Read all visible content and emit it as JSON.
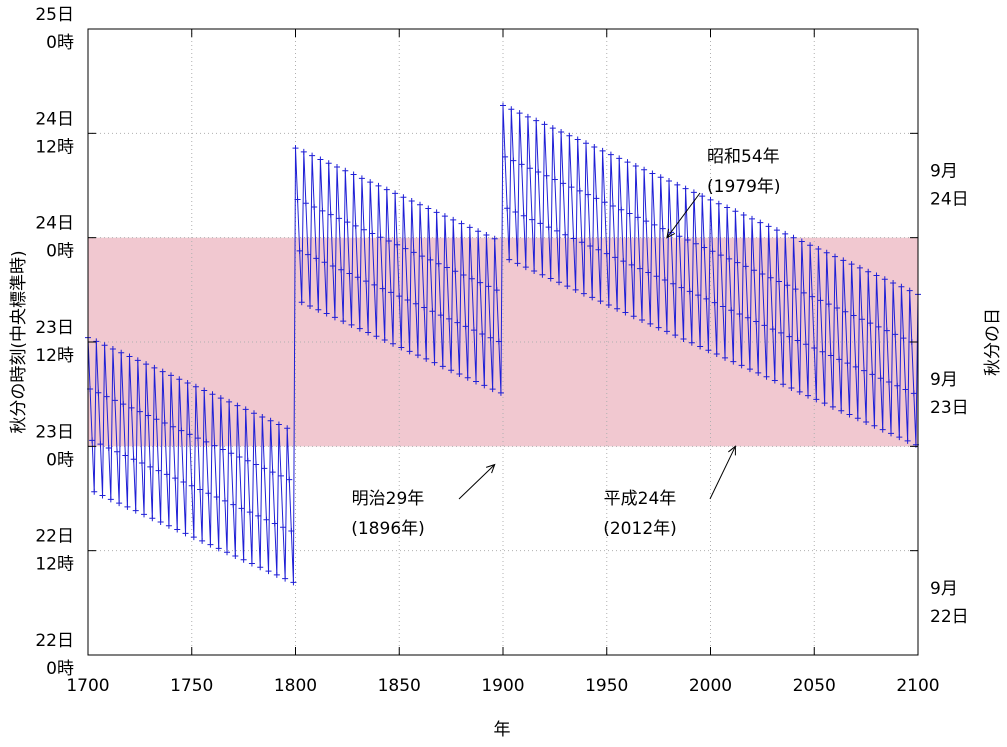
{
  "chart_data": {
    "type": "line",
    "title": "",
    "xlabel": "年",
    "ylabel_left": "秋分の時刻(中央標準時)",
    "ylabel_right": "秋分の日",
    "xlim": [
      1700,
      2100
    ],
    "ylim_hours": [
      0,
      72
    ],
    "x_ticks": [
      {
        "value": 1700,
        "label": "1700"
      },
      {
        "value": 1750,
        "label": "1750"
      },
      {
        "value": 1800,
        "label": "1800"
      },
      {
        "value": 1850,
        "label": "1850"
      },
      {
        "value": 1900,
        "label": "1900"
      },
      {
        "value": 1950,
        "label": "1950"
      },
      {
        "value": 2000,
        "label": "2000"
      },
      {
        "value": 2050,
        "label": "2050"
      },
      {
        "value": 2100,
        "label": "2100"
      }
    ],
    "y_ticks_left": [
      {
        "hours": 72,
        "line1": "25日",
        "line2": "0時"
      },
      {
        "hours": 60,
        "line1": "24日",
        "line2": "12時"
      },
      {
        "hours": 48,
        "line1": "24日",
        "line2": "0時"
      },
      {
        "hours": 36,
        "line1": "23日",
        "line2": "12時"
      },
      {
        "hours": 24,
        "line1": "23日",
        "line2": "0時"
      },
      {
        "hours": 12,
        "line1": "22日",
        "line2": "12時"
      },
      {
        "hours": 0,
        "line1": "22日",
        "line2": "0時"
      }
    ],
    "y_labels_right": [
      {
        "hours": 54,
        "line1": "9月",
        "line2": "24日"
      },
      {
        "hours": 30,
        "line1": "9月",
        "line2": "23日"
      },
      {
        "hours": 6,
        "line1": "9月",
        "line2": "22日"
      }
    ],
    "band": {
      "from_hours": 24,
      "to_hours": 48,
      "color": "#f1c8d0"
    },
    "grid": true,
    "series": [
      {
        "color": "#1f1fd6",
        "marker": "+",
        "segments": [
          {
            "start_year": 1700,
            "end_year": 1799,
            "base_hours": 36.5,
            "slope_per_year": -0.1086
          },
          {
            "start_year": 1800,
            "end_year": 1899,
            "base_hours": 58.3,
            "slope_per_year": -0.1086
          },
          {
            "start_year": 1900,
            "end_year": 2100,
            "base_hours": 63.2,
            "slope_per_year": -0.1086
          }
        ],
        "leap_cycle_offsets_hours": [
          0,
          -5.8,
          -11.6,
          -17.4
        ]
      }
    ],
    "annotations": [
      {
        "line1": "昭和54年",
        "line2": "(1979年)",
        "year": 1979,
        "hours": 48.0
      },
      {
        "line1": "明治29年",
        "line2": "(1896年)",
        "year": 1896,
        "hours": 21.9
      },
      {
        "line1": "平成24年",
        "line2": "(2012年)",
        "year": 2012,
        "hours": 24.0
      }
    ]
  }
}
